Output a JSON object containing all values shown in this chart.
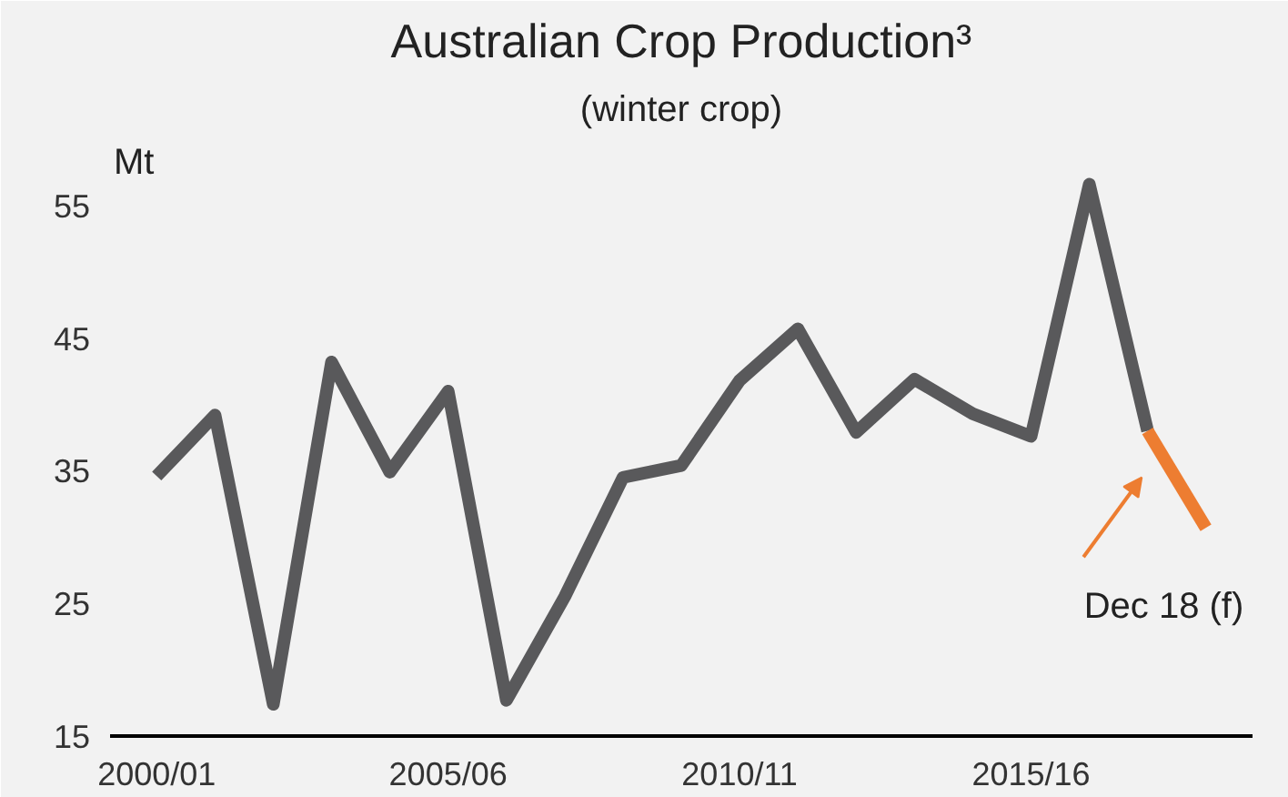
{
  "chart_data": {
    "type": "line",
    "title": "Australian Crop Production³",
    "subtitle": "(winter crop)",
    "ylabel": "Mt",
    "categories": [
      "2000/01",
      null,
      null,
      null,
      null,
      "2005/06",
      null,
      null,
      null,
      null,
      "2010/11",
      null,
      null,
      null,
      null,
      "2015/16",
      null,
      null,
      null
    ],
    "series": [
      {
        "color": "#59595b",
        "values": [
          34.6,
          39.2,
          17.4,
          43.2,
          34.9,
          41.0,
          17.7,
          25.5,
          34.5,
          35.4,
          41.8,
          45.7,
          37.9,
          41.9,
          39.3,
          37.6,
          56.6,
          38.0,
          null
        ]
      },
      {
        "color": "#ed7d31",
        "values": [
          null,
          null,
          null,
          null,
          null,
          null,
          null,
          null,
          null,
          null,
          null,
          null,
          null,
          null,
          null,
          null,
          null,
          38.0,
          30.7
        ]
      }
    ],
    "ylim": [
      15,
      60
    ],
    "yticks": [
      15,
      25,
      35,
      45,
      55
    ],
    "grid": false,
    "annotations": [
      "Dec 18 (f)"
    ]
  }
}
